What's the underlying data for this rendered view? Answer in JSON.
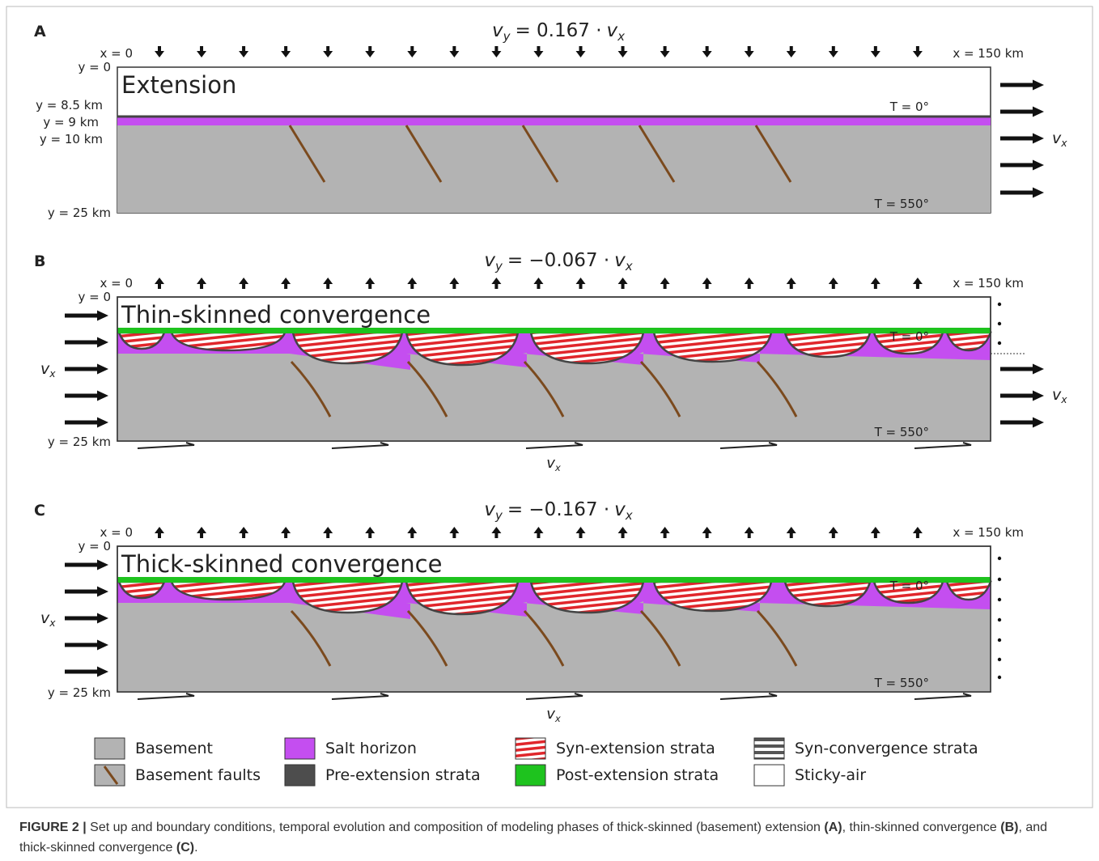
{
  "panels": [
    {
      "letter": "A",
      "equation": [
        "v",
        "y",
        "= 0.167 ·",
        "v",
        "x"
      ],
      "title": "Extension",
      "x_left": "x = 0",
      "x_right": "x = 150 km",
      "y_labels": [
        "y = 0",
        "y = 8.5 km",
        "y = 9 km",
        "y = 10 km",
        "y = 25 km"
      ],
      "t_top": "T = 0°",
      "t_bottom": "T = 550°",
      "velocity": [
        "v",
        "x"
      ]
    },
    {
      "letter": "B",
      "equation": [
        "v",
        "y",
        "= −0.067 ·",
        "v",
        "x"
      ],
      "title": "Thin-skinned convergence",
      "x_left": "x = 0",
      "x_right": "x = 150 km",
      "y_labels": [
        "y = 0",
        "y = 25 km"
      ],
      "t_top": "T = 0°",
      "t_bottom": "T = 550°",
      "velocity": [
        "v",
        "x"
      ]
    },
    {
      "letter": "C",
      "equation": [
        "v",
        "y",
        "= −0.167 ·",
        "v",
        "x"
      ],
      "title": "Thick-skinned convergence",
      "x_left": "x = 0",
      "x_right": "x = 150 km",
      "y_labels": [
        "y = 0",
        "y = 25 km"
      ],
      "t_top": "T = 0°",
      "t_bottom": "T = 550°",
      "velocity": [
        "v",
        "x"
      ]
    }
  ],
  "legend": [
    "Basement",
    "Basement faults",
    "Salt horizon",
    "Pre-extension strata",
    "Syn-extension strata",
    "Post-extension strata",
    "Syn-convergence strata",
    "Sticky-air"
  ],
  "caption": {
    "label": "FIGURE 2 |",
    "parts": [
      " Set up and boundary conditions, temporal evolution and composition of modeling phases of thick-skinned (basement) extension ",
      "(A)",
      ", thin-skinned convergence ",
      "(B)",
      ", and thick-skinned convergence ",
      "(C)",
      "."
    ]
  }
}
